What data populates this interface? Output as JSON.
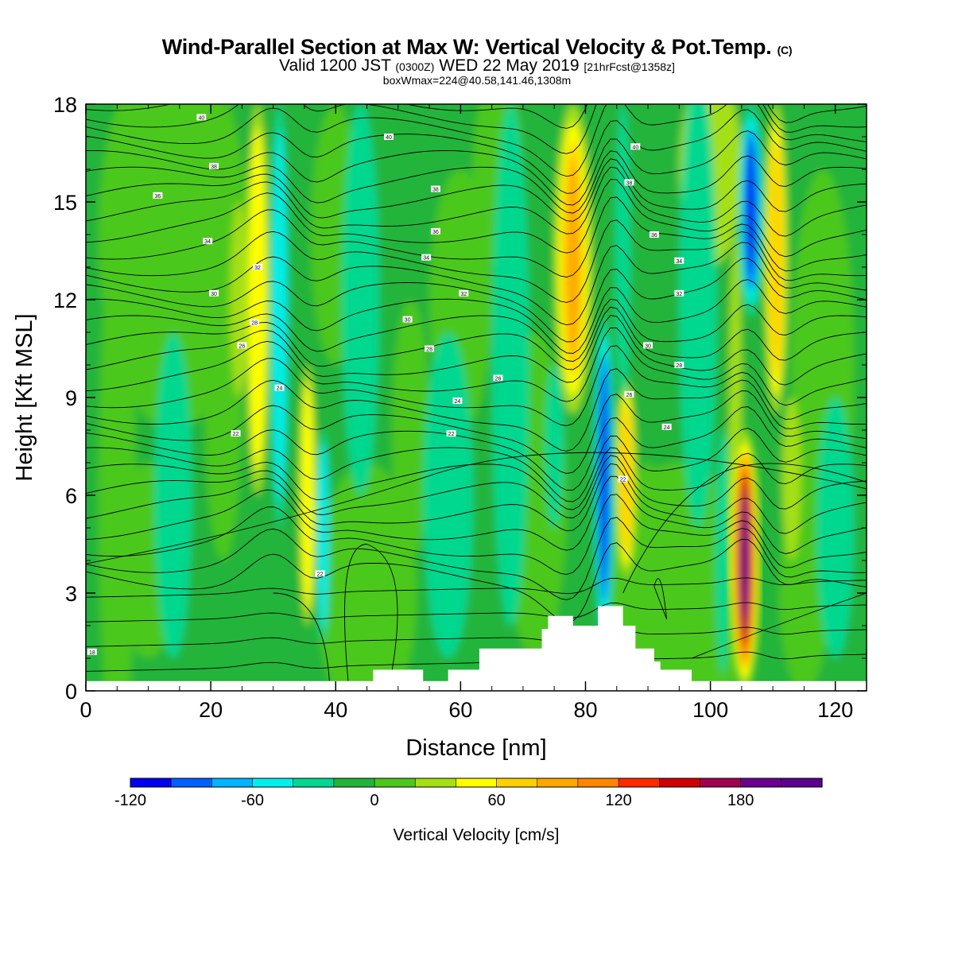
{
  "title": {
    "main": "Wind-Parallel Section at Max W: Vertical Velocity & Pot.Temp.",
    "copyright": "(C)",
    "valid_prefix": "Valid 1200 JST",
    "valid_utc": "(0300Z)",
    "valid_date": "WED 22 May 2019",
    "forecast": "[21hrFcst@1358z]",
    "boxwmax": "boxWmax=224@40.58,141.46,1308m"
  },
  "chart_data": {
    "type": "heatmap",
    "xlabel": "Distance [nm]",
    "ylabel": "Height [Kft MSL]",
    "xlim": [
      0,
      125
    ],
    "ylim": [
      0,
      18
    ],
    "x_ticks": [
      0,
      20,
      40,
      60,
      80,
      100,
      120
    ],
    "y_ticks": [
      0,
      3,
      6,
      9,
      12,
      15,
      18
    ],
    "colorbar": {
      "label": "Vertical Velocity [cm/s]",
      "min": -120,
      "max": 220,
      "step": 20,
      "tick_values": [
        -120,
        -60,
        0,
        60,
        120,
        180
      ],
      "colors": [
        "#0000ee",
        "#0060ff",
        "#00b4ff",
        "#00f0ee",
        "#00d890",
        "#20b43a",
        "#4cc81c",
        "#a4e014",
        "#ffff00",
        "#ffd000",
        "#ffa800",
        "#ff8400",
        "#ff2a00",
        "#d00000",
        "#a00050",
        "#6a0090",
        "#5b008c"
      ]
    },
    "vertical_velocity_features": [
      {
        "x_nm": 27.5,
        "z_kft": [
          6,
          18
        ],
        "w_cm_s": 40
      },
      {
        "x_nm": 31,
        "z_kft": [
          5,
          18
        ],
        "w_cm_s": -40
      },
      {
        "x_nm": 35.5,
        "z_kft": [
          2,
          10
        ],
        "w_cm_s": 35
      },
      {
        "x_nm": 78,
        "z_kft": [
          9,
          18
        ],
        "w_cm_s": 70
      },
      {
        "x_nm": 83,
        "z_kft": [
          2,
          11
        ],
        "w_cm_s": -110
      },
      {
        "x_nm": 86.5,
        "z_kft": [
          4,
          9
        ],
        "w_cm_s": 60
      },
      {
        "x_nm": 106.5,
        "z_kft": [
          12,
          18
        ],
        "w_cm_s": -100
      },
      {
        "x_nm": 110.5,
        "z_kft": [
          9,
          18
        ],
        "w_cm_s": 60
      },
      {
        "x_nm": 105.5,
        "z_kft": [
          0.5,
          7.5
        ],
        "w_cm_s": 224
      }
    ],
    "terrain_kft": [
      [
        0,
        0.3
      ],
      [
        45,
        0.3
      ],
      [
        46,
        0.65
      ],
      [
        53,
        0.65
      ],
      [
        54,
        0.3
      ],
      [
        57,
        0.3
      ],
      [
        58,
        0.65
      ],
      [
        62,
        0.65
      ],
      [
        63,
        1.3
      ],
      [
        70,
        1.3
      ],
      [
        73,
        1.9
      ],
      [
        74,
        2.3
      ],
      [
        77,
        2.3
      ],
      [
        78,
        2.0
      ],
      [
        81,
        2.0
      ],
      [
        82,
        2.6
      ],
      [
        85,
        2.6
      ],
      [
        86,
        2.0
      ],
      [
        88,
        1.3
      ],
      [
        91,
        0.9
      ],
      [
        92,
        0.65
      ],
      [
        96,
        0.65
      ],
      [
        97,
        0.3
      ],
      [
        125,
        0.3
      ]
    ],
    "potential_temperature_labels": [
      {
        "text": "40",
        "x_nm": 18.5,
        "z_kft": 17.6
      },
      {
        "text": "38",
        "x_nm": 20.5,
        "z_kft": 16.1
      },
      {
        "text": "36",
        "x_nm": 11.5,
        "z_kft": 15.2
      },
      {
        "text": "34",
        "x_nm": 19.5,
        "z_kft": 13.8
      },
      {
        "text": "32",
        "x_nm": 27.5,
        "z_kft": 13.0
      },
      {
        "text": "30",
        "x_nm": 20.5,
        "z_kft": 12.2
      },
      {
        "text": "28",
        "x_nm": 27,
        "z_kft": 11.3
      },
      {
        "text": "26",
        "x_nm": 25,
        "z_kft": 10.6
      },
      {
        "text": "24",
        "x_nm": 31,
        "z_kft": 9.3
      },
      {
        "text": "22",
        "x_nm": 24,
        "z_kft": 7.9
      },
      {
        "text": "22",
        "x_nm": 37.5,
        "z_kft": 3.6
      },
      {
        "text": "18",
        "x_nm": 1,
        "z_kft": 1.2
      },
      {
        "text": "40",
        "x_nm": 48.5,
        "z_kft": 17.0
      },
      {
        "text": "38",
        "x_nm": 56,
        "z_kft": 15.4
      },
      {
        "text": "36",
        "x_nm": 56,
        "z_kft": 14.1
      },
      {
        "text": "34",
        "x_nm": 54.5,
        "z_kft": 13.3
      },
      {
        "text": "32",
        "x_nm": 60.5,
        "z_kft": 12.2
      },
      {
        "text": "30",
        "x_nm": 51.5,
        "z_kft": 11.4
      },
      {
        "text": "28",
        "x_nm": 55,
        "z_kft": 10.5
      },
      {
        "text": "26",
        "x_nm": 66,
        "z_kft": 9.6
      },
      {
        "text": "24",
        "x_nm": 59.5,
        "z_kft": 8.9
      },
      {
        "text": "22",
        "x_nm": 58.5,
        "z_kft": 7.9
      },
      {
        "text": "40",
        "x_nm": 88,
        "z_kft": 16.7
      },
      {
        "text": "38",
        "x_nm": 87,
        "z_kft": 15.6
      },
      {
        "text": "36",
        "x_nm": 91,
        "z_kft": 14.0
      },
      {
        "text": "34",
        "x_nm": 95,
        "z_kft": 13.2
      },
      {
        "text": "32",
        "x_nm": 95,
        "z_kft": 12.2
      },
      {
        "text": "30",
        "x_nm": 90,
        "z_kft": 10.6
      },
      {
        "text": "28",
        "x_nm": 95,
        "z_kft": 10.0
      },
      {
        "text": "26",
        "x_nm": 87,
        "z_kft": 9.1
      },
      {
        "text": "24",
        "x_nm": 93,
        "z_kft": 8.1
      },
      {
        "text": "22",
        "x_nm": 86,
        "z_kft": 6.5
      }
    ]
  }
}
